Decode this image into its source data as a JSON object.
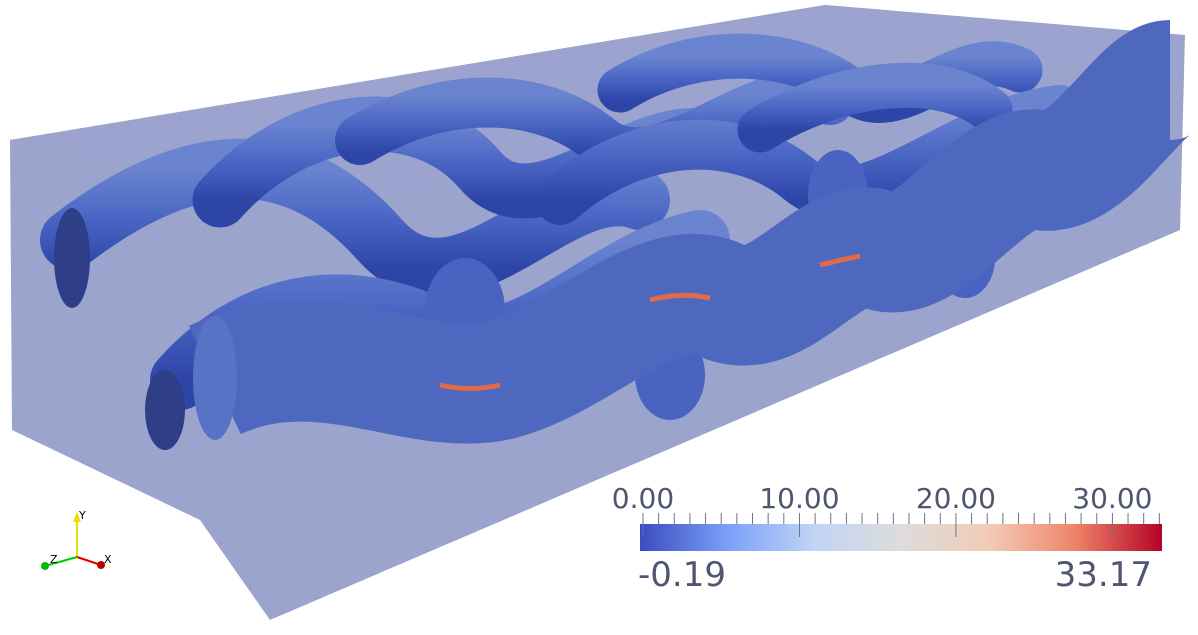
{
  "colorbar": {
    "min": -0.19,
    "max": 33.17,
    "min_label": "-0.19",
    "max_label": "33.17",
    "major_ticks": [
      {
        "value": 0,
        "label": "0.00"
      },
      {
        "value": 10,
        "label": "10.00"
      },
      {
        "value": 20,
        "label": "20.00"
      },
      {
        "value": 30,
        "label": "30.00"
      }
    ],
    "colormap": [
      "#3b4cc0",
      "#7b9ff9",
      "#c0d4f5",
      "#dddcdc",
      "#f2cbb7",
      "#ee8468",
      "#b40426"
    ]
  },
  "orientation_axes": {
    "x": "X",
    "y": "Y",
    "z": "Z",
    "x_color": "#e00000",
    "y_color": "#e8e000",
    "z_color": "#00cc00"
  },
  "scene": {
    "box_color": "#8a94c4",
    "tube_color": "#3f5cc0"
  }
}
